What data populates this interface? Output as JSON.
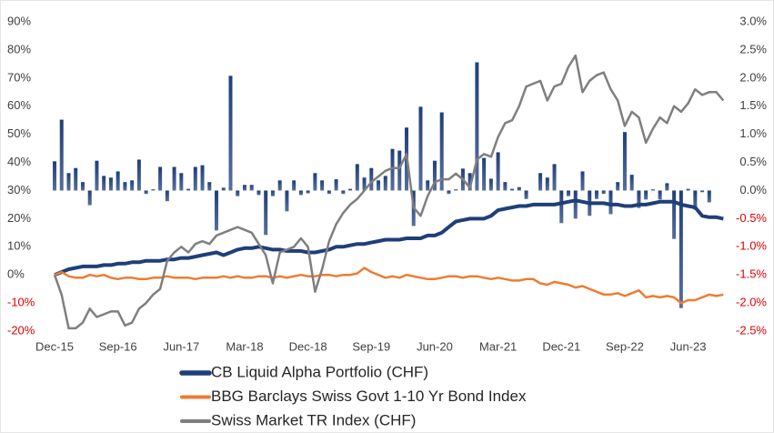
{
  "chart_data": {
    "type": "combo",
    "categories": [
      "Dec-15",
      null,
      null,
      null,
      null,
      null,
      null,
      null,
      null,
      "Sep-16",
      null,
      null,
      null,
      null,
      null,
      null,
      null,
      null,
      "Jun-17",
      null,
      null,
      null,
      null,
      null,
      null,
      null,
      null,
      "Mar-18",
      null,
      null,
      null,
      null,
      null,
      null,
      null,
      null,
      "Dec-18",
      null,
      null,
      null,
      null,
      null,
      null,
      null,
      null,
      "Sep-19",
      null,
      null,
      null,
      null,
      null,
      null,
      null,
      null,
      "Jun-20",
      null,
      null,
      null,
      null,
      null,
      null,
      null,
      null,
      "Mar-21",
      null,
      null,
      null,
      null,
      null,
      null,
      null,
      null,
      "Dec-21",
      null,
      null,
      null,
      null,
      null,
      null,
      null,
      null,
      "Sep-22",
      null,
      null,
      null,
      null,
      null,
      null,
      null,
      null,
      "Jun-23",
      null,
      null,
      null,
      null,
      null
    ],
    "ylim": [
      -20,
      90
    ],
    "yticks": [
      {
        "value": -20,
        "label": "-20%"
      },
      {
        "value": -10,
        "label": "-10%"
      },
      {
        "value": 0,
        "label": "0%"
      },
      {
        "value": 10,
        "label": "10%"
      },
      {
        "value": 20,
        "label": "20%"
      },
      {
        "value": 30,
        "label": "30%"
      },
      {
        "value": 40,
        "label": "40%"
      },
      {
        "value": 50,
        "label": "50%"
      },
      {
        "value": 60,
        "label": "60%"
      },
      {
        "value": 70,
        "label": "70%"
      },
      {
        "value": 80,
        "label": "80%"
      },
      {
        "value": 90,
        "label": "90%"
      }
    ],
    "y2lim": [
      -2.5,
      3.0
    ],
    "y2ticks": [
      {
        "value": -2.5,
        "label": "-2.5%"
      },
      {
        "value": -2.0,
        "label": "-2.0%"
      },
      {
        "value": -1.5,
        "label": "-1.5%"
      },
      {
        "value": -1.0,
        "label": "-1.0%"
      },
      {
        "value": -0.5,
        "label": "-0.5%"
      },
      {
        "value": 0,
        "label": "0.0%"
      },
      {
        "value": 0.5,
        "label": "0.5%"
      },
      {
        "value": 1.0,
        "label": "1.0%"
      },
      {
        "value": 1.5,
        "label": "1.5%"
      },
      {
        "value": 2.0,
        "label": "2.0%"
      },
      {
        "value": 2.5,
        "label": "2.5%"
      },
      {
        "value": 3.0,
        "label": "3.0%"
      }
    ],
    "negative_tick_color": "#e00000",
    "series": [
      {
        "type": "bar",
        "axis": "y2",
        "color": "#1f3f7a",
        "values": [
          0.52,
          1.26,
          0.31,
          0.4,
          0.15,
          -0.26,
          0.53,
          0.26,
          0.23,
          0.34,
          0.15,
          0.18,
          0.55,
          -0.06,
          0.02,
          0.42,
          -0.19,
          0.42,
          0.31,
          0.03,
          0.42,
          0.45,
          0.15,
          -0.71,
          0.05,
          2.04,
          -0.1,
          0.1,
          0.1,
          -0.08,
          -0.79,
          -0.1,
          0.18,
          -0.37,
          0.18,
          -0.08,
          -0.05,
          0.31,
          0.18,
          -0.06,
          0.2,
          -0.06,
          0.03,
          0.47,
          0.23,
          0.4,
          0.18,
          0.26,
          0.74,
          0.71,
          1.12,
          -0.63,
          1.49,
          0.18,
          0.53,
          1.39,
          -0.06,
          0.02,
          0.39,
          0.31,
          2.28,
          0.58,
          0.21,
          0.68,
          0.15,
          0.03,
          0.06,
          -0.15,
          0.0,
          0.31,
          0.23,
          0.47,
          -0.58,
          -0.1,
          -0.5,
          0.34,
          -0.45,
          -0.15,
          -0.06,
          -0.42,
          0.15,
          1.04,
          0.28,
          -0.31,
          -0.16,
          0.02,
          -0.16,
          0.13,
          -0.86,
          -2.09,
          0.03,
          -0.34,
          -0.03,
          -0.21,
          0.0,
          null
        ]
      },
      {
        "type": "line",
        "axis": "y",
        "name": "CB Liquid Alpha Portfolio (CHF)",
        "color": "#1f3f7a",
        "width": 4,
        "values": [
          0,
          1,
          2,
          2.5,
          3,
          3,
          3,
          3.5,
          3.5,
          4,
          4,
          4.5,
          4.5,
          5,
          5,
          5,
          5.5,
          5.5,
          6,
          6,
          6.5,
          7,
          7.5,
          8,
          7,
          8,
          9,
          9.5,
          9.5,
          10,
          9.5,
          9,
          9,
          8.5,
          8.5,
          8.5,
          8,
          8,
          8.5,
          9,
          10,
          10,
          10.5,
          11,
          11,
          11.5,
          12,
          12.5,
          12.5,
          12.5,
          13,
          13,
          13,
          14,
          14,
          15,
          17,
          19,
          19.5,
          20,
          20,
          20,
          21,
          23,
          23.5,
          24,
          24.5,
          24.5,
          25,
          25,
          25,
          25,
          25.5,
          26,
          26.5,
          26,
          25.5,
          25.5,
          25.5,
          25,
          25,
          24.5,
          24.5,
          25,
          25,
          25.5,
          26,
          26,
          26,
          25,
          24.5,
          24,
          21,
          20.5,
          20.5,
          20
        ]
      },
      {
        "type": "line",
        "axis": "y",
        "name": "BBG Barclays Swiss Govt 1-10 Yr Bond Index",
        "color": "#ed7d31",
        "width": 2.5,
        "values": [
          0,
          1,
          -0.5,
          -1,
          -1,
          0,
          -0.5,
          0,
          -1,
          -1.5,
          -1,
          -1,
          -1.5,
          -1.5,
          -1,
          -1,
          -0.5,
          -1,
          -1,
          -1,
          -1.5,
          -1,
          -1,
          -1,
          -0.5,
          -1,
          -0.5,
          -1,
          -1,
          -0.5,
          -0.5,
          -1,
          -0.5,
          -1,
          -0.5,
          0,
          -0.5,
          -0.5,
          0,
          0,
          -0.5,
          0,
          0,
          0.5,
          2.5,
          1,
          0,
          -1,
          -0.5,
          -1,
          0,
          -0.5,
          -1,
          -1.5,
          -1.5,
          -1,
          -0.5,
          -0.5,
          -1,
          -0.5,
          -0.5,
          -1,
          -1.5,
          -1,
          -1.5,
          -2,
          -2,
          -1.5,
          -1.5,
          -3,
          -3.5,
          -2.5,
          -3,
          -3.5,
          -4.5,
          -4,
          -5,
          -6,
          -7,
          -7,
          -6.5,
          -7.5,
          -6.5,
          -5.5,
          -8,
          -7.5,
          -8,
          -7.5,
          -8,
          -10,
          -9,
          -9,
          -8,
          -7,
          -7.5,
          -7
        ]
      },
      {
        "type": "line",
        "axis": "y",
        "name": "Swiss Market TR Index (CHF)",
        "color": "#7f7f7f",
        "width": 2.5,
        "values": [
          0,
          -7,
          -19,
          -19,
          -17,
          -12,
          -15,
          -14,
          -13,
          -13,
          -18,
          -17,
          -12,
          -10,
          -7,
          -5,
          5,
          8,
          10,
          8,
          11,
          12,
          11,
          14,
          15,
          16,
          17,
          16,
          15,
          11,
          7,
          -3,
          8,
          9,
          10,
          13,
          10,
          -6,
          2,
          12,
          18,
          22,
          25,
          27,
          30,
          33,
          35,
          37,
          38,
          38,
          43,
          24,
          21,
          28,
          33,
          34,
          34,
          36,
          34,
          31,
          41,
          43,
          42,
          49,
          54,
          55,
          60,
          67,
          68,
          69,
          62,
          67,
          68,
          74,
          78,
          65,
          69,
          71,
          72,
          66,
          62,
          53,
          58,
          56,
          47,
          52,
          56,
          54,
          60,
          58,
          61,
          66,
          64,
          65,
          65,
          62
        ]
      }
    ]
  }
}
